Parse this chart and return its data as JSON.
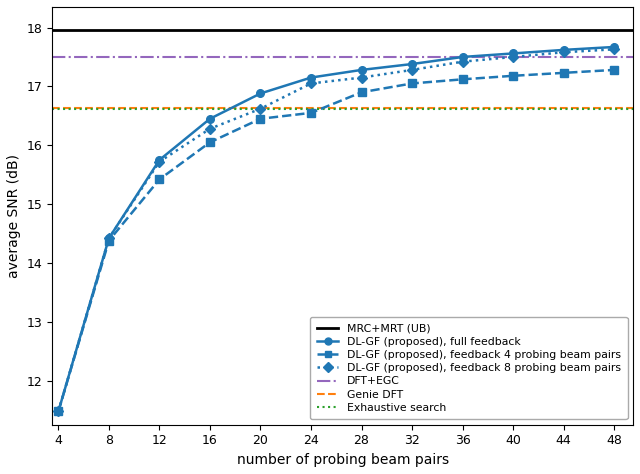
{
  "x": [
    4,
    8,
    12,
    16,
    20,
    24,
    28,
    32,
    36,
    40,
    44,
    48
  ],
  "full_feedback": [
    11.48,
    14.42,
    15.75,
    16.45,
    16.88,
    17.15,
    17.28,
    17.38,
    17.5,
    17.56,
    17.62,
    17.67
  ],
  "feedback_4": [
    11.48,
    14.38,
    15.42,
    16.05,
    16.45,
    16.55,
    16.9,
    17.05,
    17.12,
    17.18,
    17.23,
    17.28
  ],
  "feedback_8": [
    11.48,
    14.42,
    15.72,
    16.28,
    16.62,
    17.05,
    17.15,
    17.28,
    17.42,
    17.5,
    17.58,
    17.63
  ],
  "mrc_mrt_ub": 17.95,
  "dft_egc": 17.5,
  "genie_dft": 16.63,
  "exhaustive_search": 16.61,
  "line_color": "#1f77b4",
  "mrc_color": "#000000",
  "dft_egc_color": "#9467bd",
  "genie_dft_color": "#ff7f0e",
  "exhaustive_color": "#2ca02c",
  "xlabel": "number of probing beam pairs",
  "ylabel": "average SNR (dB)",
  "xlim": [
    3.5,
    49.5
  ],
  "ylim": [
    11.25,
    18.35
  ],
  "yticks": [
    12,
    13,
    14,
    15,
    16,
    17,
    18
  ],
  "xticks": [
    4,
    8,
    12,
    16,
    20,
    24,
    28,
    32,
    36,
    40,
    44,
    48
  ],
  "legend_labels": [
    "MRC+MRT (UB)",
    "DL-GF (proposed), full feedback",
    "DL-GF (proposed), feedback 4 probing beam pairs",
    "DL-GF (proposed), feedback 8 probing beam pairs",
    "DFT+EGC",
    "Genie DFT",
    "Exhaustive search"
  ],
  "figsize": [
    6.4,
    4.74
  ],
  "dpi": 100
}
